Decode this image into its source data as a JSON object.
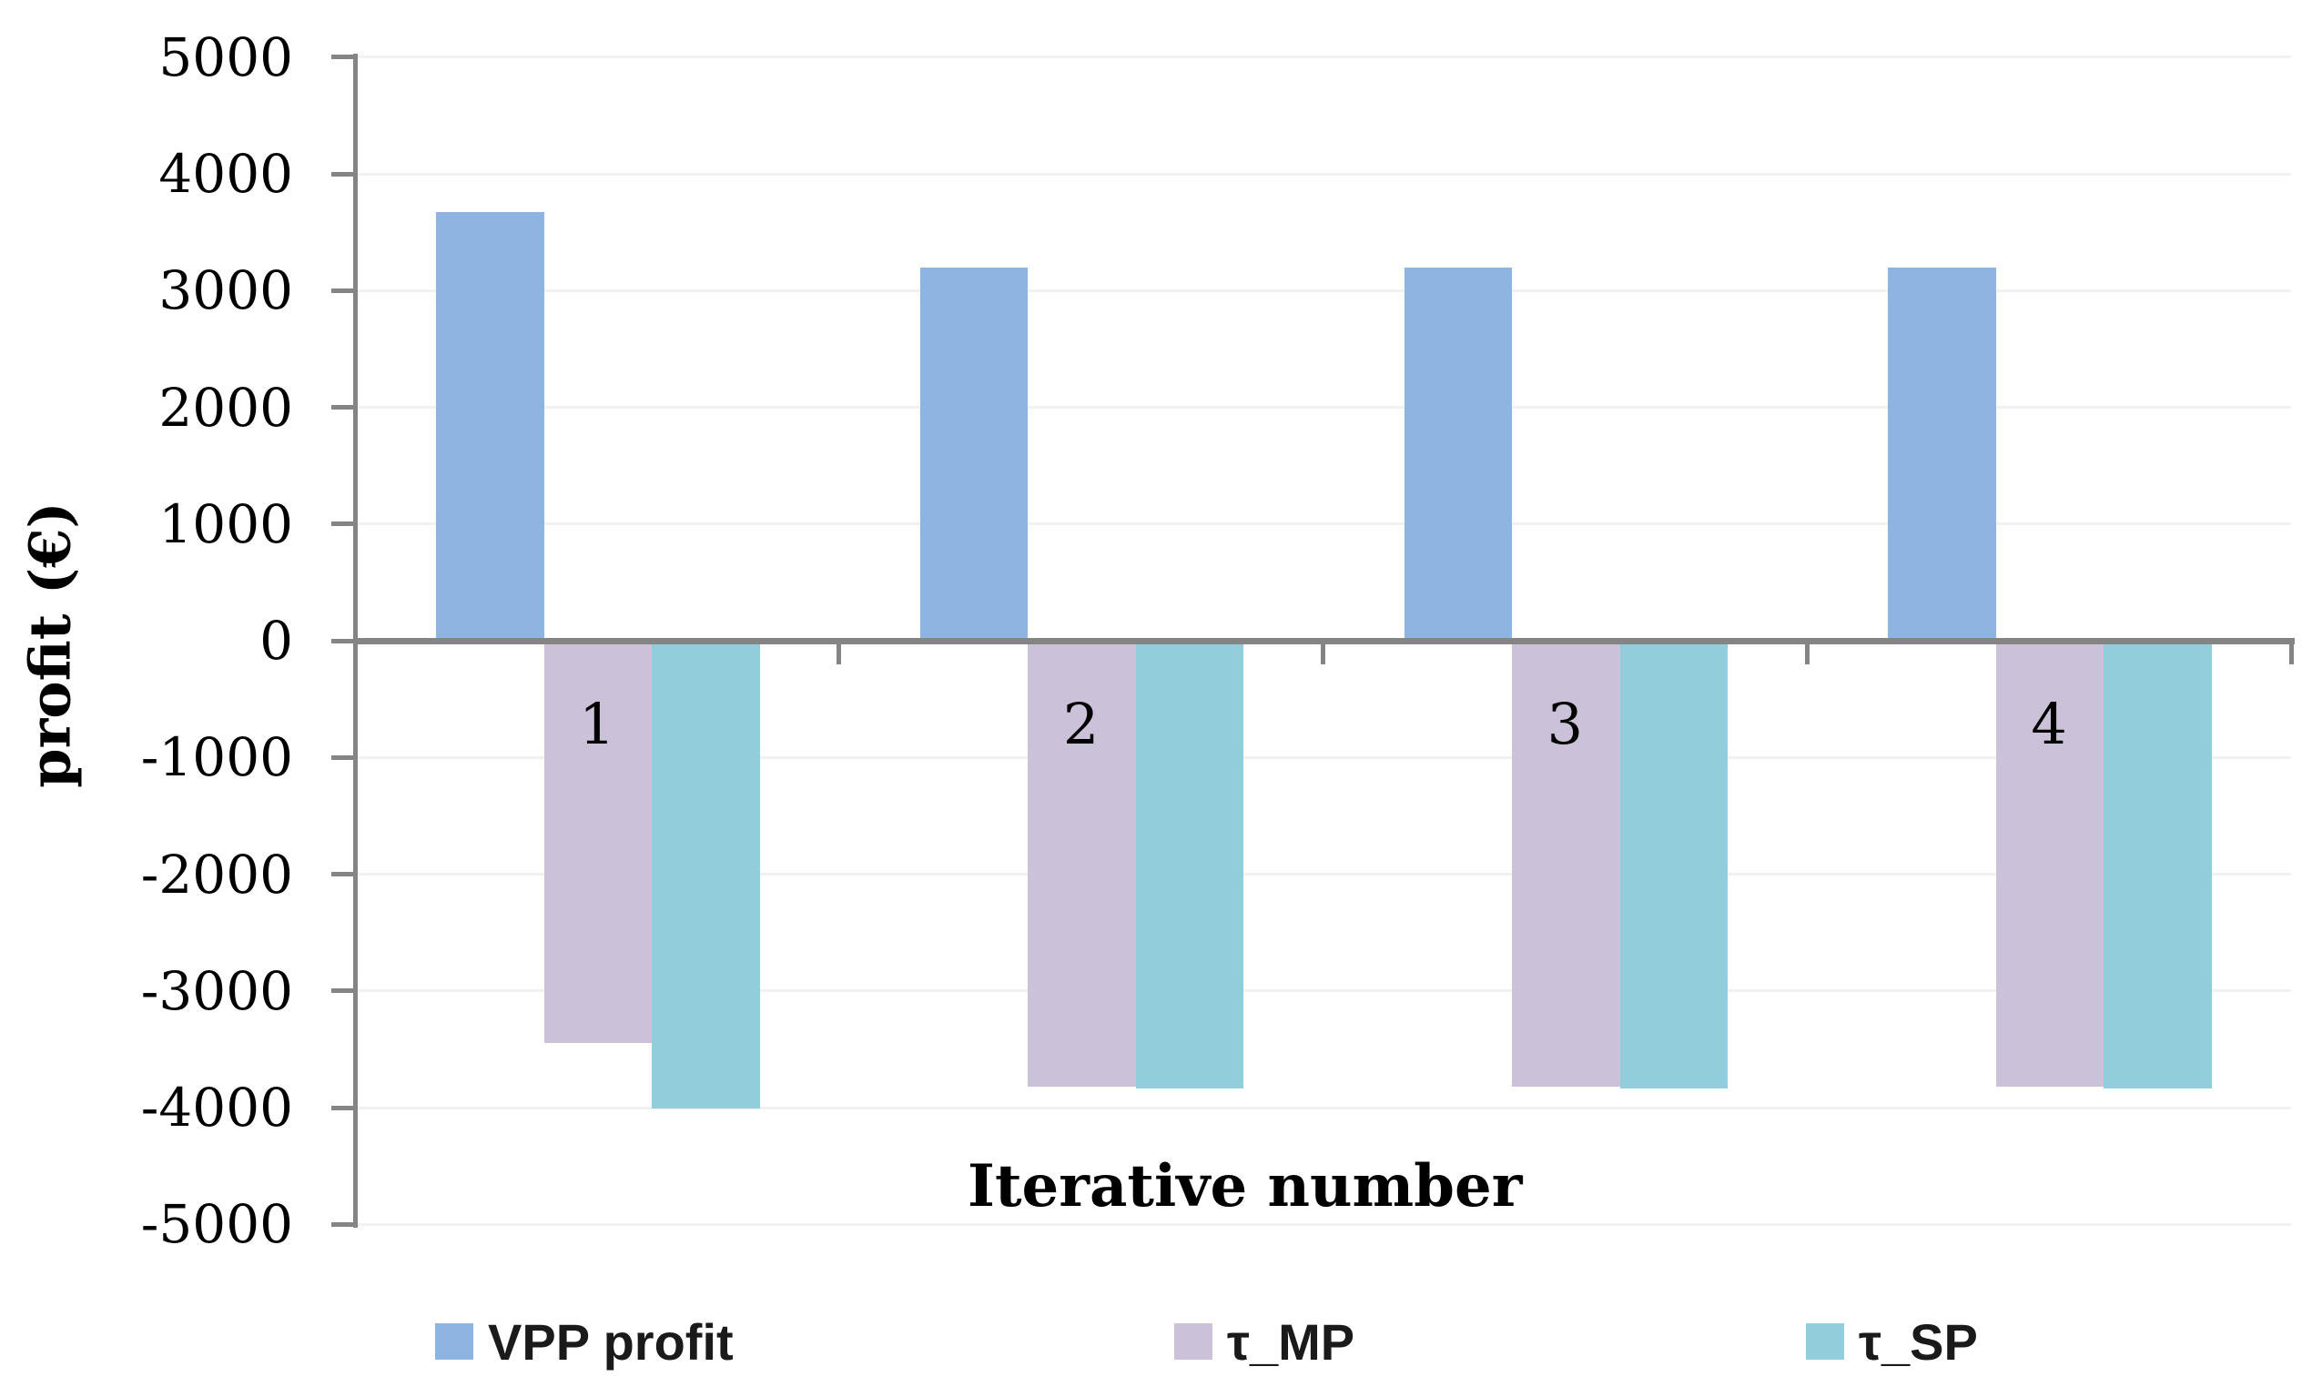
{
  "chart_data": {
    "type": "bar",
    "title": "",
    "xlabel": "Iterative number",
    "ylabel": "profit (€)",
    "categories": [
      "1",
      "2",
      "3",
      "4"
    ],
    "series": [
      {
        "name": "VPP profit",
        "color": "#8EB4E2",
        "values": [
          3670,
          3200,
          3200,
          3200
        ]
      },
      {
        "name": "τ_MP",
        "color": "#CBC2DA",
        "values": [
          -3450,
          -3820,
          -3820,
          -3820
        ]
      },
      {
        "name": "τ_SP",
        "color": "#92CDDC",
        "values": [
          -4010,
          -3840,
          -3840,
          -3840
        ]
      }
    ],
    "ylim": [
      -5000,
      5000
    ],
    "ytick_step": 1000,
    "yticks": [
      "5000",
      "4000",
      "3000",
      "2000",
      "1000",
      "0",
      "-1000",
      "-2000",
      "-3000",
      "-4000",
      "-5000"
    ],
    "grid": true,
    "legend_position": "bottom",
    "colors": {
      "axis": "#848484",
      "gridline": "#f1f1f1",
      "text": "#000000"
    }
  }
}
